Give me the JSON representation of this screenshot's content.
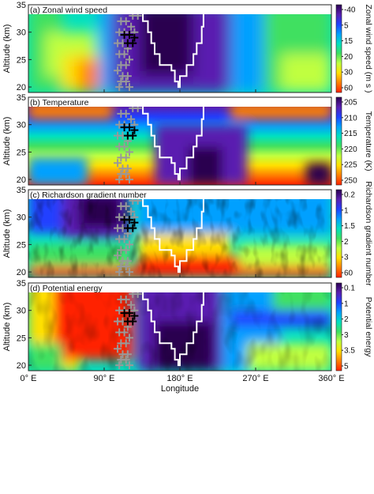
{
  "chart_data": [
    {
      "type": "heatmap",
      "panel": "a",
      "title": "(a) Zonal wind speed",
      "ylabel": "Altitude (km)",
      "colorbar_label": "Zonal wind speed (m s )",
      "colorbar_ticks": [
        "-40",
        "5",
        "15",
        "20",
        "30",
        "60"
      ],
      "ylim": [
        19,
        35
      ],
      "yticks": [
        20,
        25,
        30,
        35
      ]
    },
    {
      "type": "heatmap",
      "panel": "b",
      "title": "(b) Temperature",
      "ylabel": "Altitude (km)",
      "colorbar_label": "Temperature (K)",
      "colorbar_ticks": [
        "205",
        "210",
        "215",
        "220",
        "225",
        "250"
      ],
      "ylim": [
        19,
        35
      ],
      "yticks": [
        20,
        25,
        30,
        35
      ]
    },
    {
      "type": "heatmap",
      "panel": "c",
      "title": "(c) Richardson gradient number",
      "ylabel": "Altitude (km)",
      "colorbar_label": "Richardson gradient number",
      "colorbar_ticks": [
        "0.2",
        "1",
        "1.5",
        "2",
        "3",
        "60"
      ],
      "ylim": [
        19,
        35
      ],
      "yticks": [
        20,
        25,
        30,
        35
      ]
    },
    {
      "type": "heatmap",
      "panel": "d",
      "title": "(d) Potential energy",
      "ylabel": "Altitude (km)",
      "colorbar_label": "Potential energy",
      "colorbar_ticks": [
        "0.1",
        "1",
        "2",
        "3",
        "3.5",
        "5"
      ],
      "ylim": [
        19,
        35
      ],
      "yticks": [
        20,
        25,
        30,
        35
      ]
    }
  ],
  "xaxis": {
    "label": "Longitude",
    "ticks": [
      "0° E",
      "90° E",
      "180° E",
      "270° E",
      "360° E"
    ],
    "tick_values": [
      0,
      90,
      180,
      270,
      360
    ]
  },
  "colors": {
    "palette": [
      "#2a0050",
      "#5a1fb0",
      "#2040ff",
      "#00a0ff",
      "#00e0c0",
      "#40e060",
      "#c0ff40",
      "#ffe000",
      "#ff8000",
      "#ff2000"
    ],
    "black_marker": "#000000",
    "gray_marker": "#999999",
    "contour": "#ffffff"
  }
}
